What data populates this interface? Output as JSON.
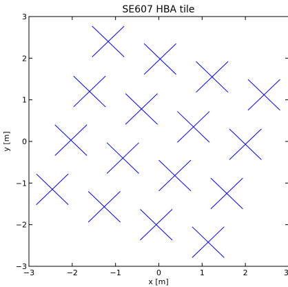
{
  "chart_data": {
    "type": "scatter",
    "title": "SE607 HBA tile",
    "xlabel": "x [m]",
    "ylabel": "y [m]",
    "xlim": [
      -3,
      3
    ],
    "ylim": [
      -3,
      3
    ],
    "xticks": [
      -3,
      -2,
      -1,
      0,
      1,
      2,
      3
    ],
    "yticks": [
      -3,
      -2,
      -1,
      0,
      1,
      2,
      3
    ],
    "xtick_labels": [
      "−3",
      "−2",
      "−1",
      "0",
      "1",
      "2",
      "3"
    ],
    "ytick_labels": [
      "−3",
      "−2",
      "−1",
      "0",
      "1",
      "2",
      "3"
    ],
    "grid": false,
    "marker": "x-dipole-pair",
    "marker_half_span_m": 0.37,
    "color": "#0000ff",
    "points": [
      {
        "x": -1.17,
        "y": 2.4
      },
      {
        "x": 0.03,
        "y": 1.98
      },
      {
        "x": 1.23,
        "y": 1.55
      },
      {
        "x": 2.43,
        "y": 1.12
      },
      {
        "x": -1.6,
        "y": 1.2
      },
      {
        "x": -0.4,
        "y": 0.78
      },
      {
        "x": 0.8,
        "y": 0.35
      },
      {
        "x": 2.0,
        "y": -0.07
      },
      {
        "x": -2.03,
        "y": 0.03
      },
      {
        "x": -0.83,
        "y": -0.4
      },
      {
        "x": 0.37,
        "y": -0.82
      },
      {
        "x": 1.57,
        "y": -1.25
      },
      {
        "x": -2.46,
        "y": -1.15
      },
      {
        "x": -1.26,
        "y": -1.57
      },
      {
        "x": -0.06,
        "y": -2.0
      },
      {
        "x": 1.14,
        "y": -2.42
      }
    ]
  }
}
